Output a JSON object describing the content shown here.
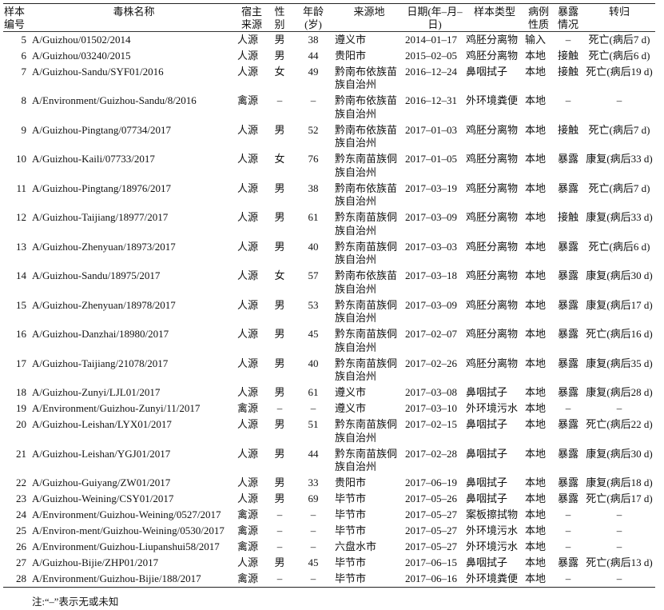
{
  "headers": [
    "样本编号",
    "毒株名称",
    "宿主来源",
    "性别",
    "年龄(岁)",
    "来源地",
    "日期(年–月–日)",
    "样本类型",
    "病例性质",
    "暴露情况",
    "转归"
  ],
  "header_lines": [
    [
      "样本",
      "编号"
    ],
    [
      "毒株名称"
    ],
    [
      "宿主",
      "来源"
    ],
    [
      "性",
      "别"
    ],
    [
      "年龄",
      "(岁)"
    ],
    [
      "来源地"
    ],
    [
      "日期",
      "(年–月–日)"
    ],
    [
      "样本类型"
    ],
    [
      "病例",
      "性质"
    ],
    [
      "暴露",
      "情况"
    ],
    [
      "转归"
    ]
  ],
  "rows": [
    [
      "5",
      "A/Guizhou/01502/2014",
      "人源",
      "男",
      "38",
      "遵义市",
      "2014–01–17",
      "鸡胚分离物",
      "输入",
      "–",
      "死亡(病后7 d)"
    ],
    [
      "6",
      "A/Guizhou/03240/2015",
      "人源",
      "男",
      "44",
      "贵阳市",
      "2015–02–05",
      "鸡胚分离物",
      "本地",
      "接触",
      "死亡(病后6 d)"
    ],
    [
      "7",
      "A/Guizhou-Sandu/SYF01/2016",
      "人源",
      "女",
      "49",
      "黔南布依族苗族自治州",
      "2016–12–24",
      "鼻咽拭子",
      "本地",
      "接触",
      "死亡(病后19 d)"
    ],
    [
      "8",
      "A/Environment/Guizhou-Sandu/8/2016",
      "禽源",
      "–",
      "–",
      "黔南布依族苗族自治州",
      "2016–12–31",
      "外环境粪便",
      "本地",
      "–",
      "–"
    ],
    [
      "9",
      "A/Guizhou-Pingtang/07734/2017",
      "人源",
      "男",
      "52",
      "黔南布依族苗族自治州",
      "2017–01–03",
      "鸡胚分离物",
      "本地",
      "接触",
      "死亡(病后7 d)"
    ],
    [
      "10",
      "A/Guizhou-Kaili/07733/2017",
      "人源",
      "女",
      "76",
      "黔东南苗族侗族自治州",
      "2017–01–05",
      "鸡胚分离物",
      "本地",
      "暴露",
      "康复(病后33 d)"
    ],
    [
      "11",
      "A/Guizhou-Pingtang/18976/2017",
      "人源",
      "男",
      "38",
      "黔南布依族苗族自治州",
      "2017–03–19",
      "鸡胚分离物",
      "本地",
      "暴露",
      "死亡(病后7 d)"
    ],
    [
      "12",
      "A/Guizhou-Taijiang/18977/2017",
      "人源",
      "男",
      "61",
      "黔东南苗族侗族自治州",
      "2017–03–09",
      "鸡胚分离物",
      "本地",
      "接触",
      "康复(病后33 d)"
    ],
    [
      "13",
      "A/Guizhou-Zhenyuan/18973/2017",
      "人源",
      "男",
      "40",
      "黔东南苗族侗族自治州",
      "2017–03–03",
      "鸡胚分离物",
      "本地",
      "暴露",
      "死亡(病后6 d)"
    ],
    [
      "14",
      "A/Guizhou-Sandu/18975/2017",
      "人源",
      "女",
      "57",
      "黔南布依族苗族自治州",
      "2017–03–18",
      "鸡胚分离物",
      "本地",
      "暴露",
      "康复(病后30 d)"
    ],
    [
      "15",
      "A/Guizhou-Zhenyuan/18978/2017",
      "人源",
      "男",
      "53",
      "黔东南苗族侗族自治州",
      "2017–03–09",
      "鸡胚分离物",
      "本地",
      "暴露",
      "康复(病后17 d)"
    ],
    [
      "16",
      "A/Guizhou-Danzhai/18980/2017",
      "人源",
      "男",
      "45",
      "黔东南苗族侗族自治州",
      "2017–02–07",
      "鸡胚分离物",
      "本地",
      "暴露",
      "死亡(病后16 d)"
    ],
    [
      "17",
      "A/Guizhou-Taijiang/21078/2017",
      "人源",
      "男",
      "40",
      "黔东南苗族侗族自治州",
      "2017–02–26",
      "鸡胚分离物",
      "本地",
      "暴露",
      "康复(病后35 d)"
    ],
    [
      "18",
      "A/Guizhou-Zunyi/LJL01/2017",
      "人源",
      "男",
      "61",
      "遵义市",
      "2017–03–08",
      "鼻咽拭子",
      "本地",
      "暴露",
      "康复(病后28 d)"
    ],
    [
      "19",
      "A/Environment/Guizhou-Zunyi/11/2017",
      "禽源",
      "–",
      "–",
      "遵义市",
      "2017–03–10",
      "外环境污水",
      "本地",
      "–",
      "–"
    ],
    [
      "20",
      "A/Guizhou-Leishan/LYX01/2017",
      "人源",
      "男",
      "51",
      "黔东南苗族侗族自治州",
      "2017–02–15",
      "鼻咽拭子",
      "本地",
      "暴露",
      "死亡(病后22 d)"
    ],
    [
      "21",
      "A/Guizhou-Leishan/YGJ01/2017",
      "人源",
      "男",
      "44",
      "黔东南苗族侗族自治州",
      "2017–02–28",
      "鼻咽拭子",
      "本地",
      "暴露",
      "康复(病后30 d)"
    ],
    [
      "22",
      "A/Guizhou-Guiyang/ZW01/2017",
      "人源",
      "男",
      "33",
      "贵阳市",
      "2017–06–19",
      "鼻咽拭子",
      "本地",
      "暴露",
      "康复(病后18 d)"
    ],
    [
      "23",
      "A/Guizhou-Weining/CSY01/2017",
      "人源",
      "男",
      "69",
      "毕节市",
      "2017–05–26",
      "鼻咽拭子",
      "本地",
      "暴露",
      "死亡(病后17 d)"
    ],
    [
      "24",
      "A/Environment/Guizhou-Weining/0527/2017",
      "禽源",
      "–",
      "–",
      "毕节市",
      "2017–05–27",
      "案板擦拭物",
      "本地",
      "–",
      "–"
    ],
    [
      "25",
      "A/Environ-ment/Guizhou-Weining/0530/2017",
      "禽源",
      "–",
      "–",
      "毕节市",
      "2017–05–27",
      "外环境污水",
      "本地",
      "–",
      "–"
    ],
    [
      "26",
      "A/Environment/Guizhou-Liupanshui58/2017",
      "禽源",
      "–",
      "–",
      "六盘水市",
      "2017–05–27",
      "外环境污水",
      "本地",
      "–",
      "–"
    ],
    [
      "27",
      "A/Guizhou-Bijie/ZHP01/2017",
      "人源",
      "男",
      "45",
      "毕节市",
      "2017–06–15",
      "鼻咽拭子",
      "本地",
      "暴露",
      "死亡(病后13 d)"
    ],
    [
      "28",
      "A/Environment/Guizhou-Bijie/188/2017",
      "禽源",
      "–",
      "–",
      "毕节市",
      "2017–06–16",
      "外环境粪便",
      "本地",
      "–",
      "–"
    ]
  ],
  "note": "注:“–”表示无或未知"
}
